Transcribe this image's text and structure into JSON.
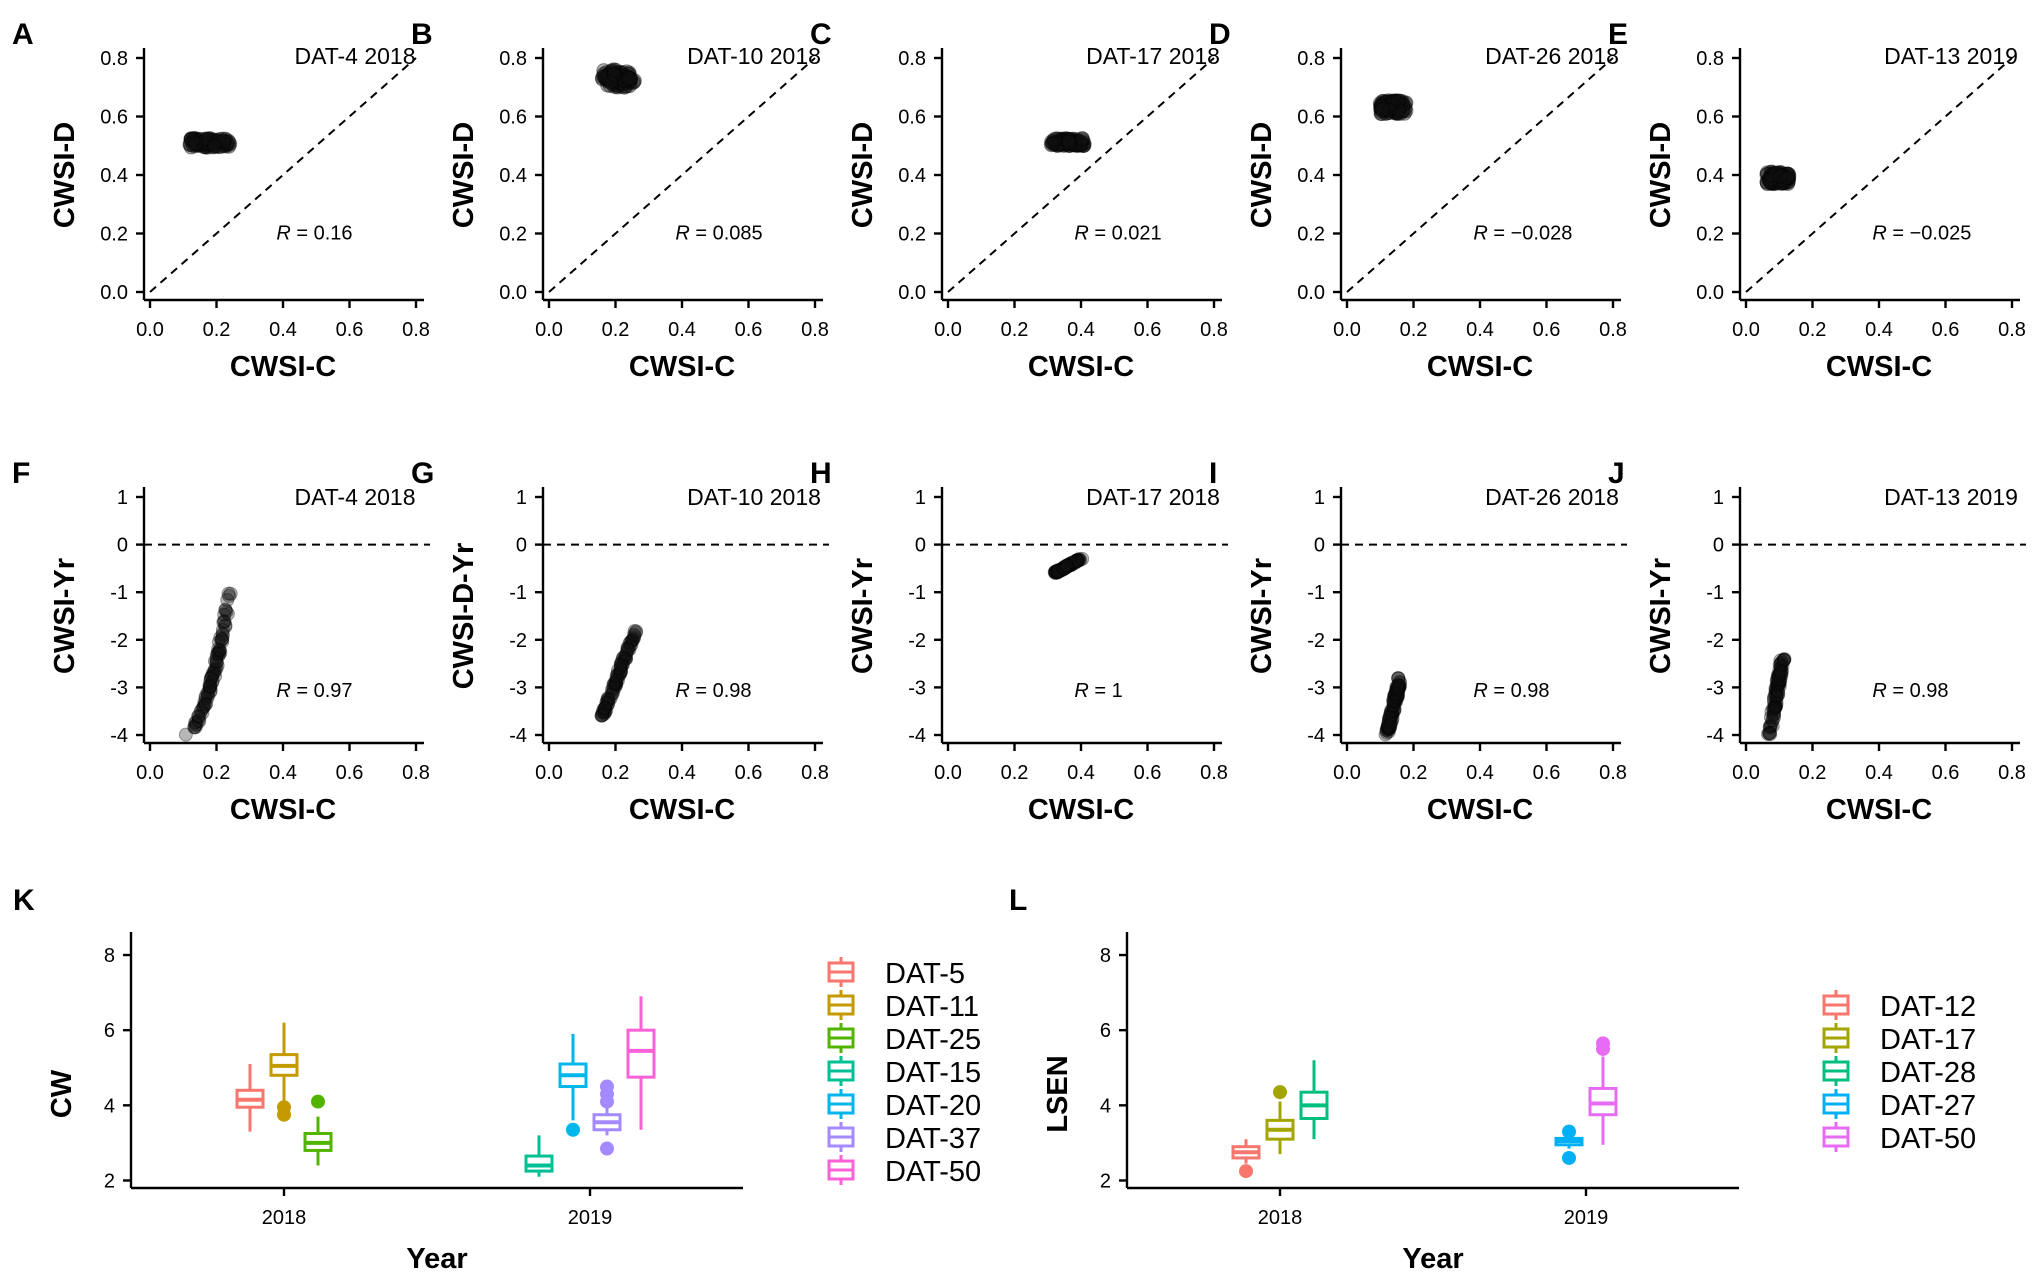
{
  "chart_data": [
    {
      "id": "A",
      "type": "scatter",
      "panel_label": "A",
      "title": "DAT-4 2018",
      "xlabel": "CWSI-C",
      "ylabel": "CWSI-D",
      "xlim": [
        0,
        0.8
      ],
      "ylim": [
        0,
        0.8
      ],
      "xticks": [
        "0.0",
        "0.2",
        "0.4",
        "0.6",
        "0.8"
      ],
      "yticks": [
        "0.0",
        "0.2",
        "0.4",
        "0.6",
        "0.8"
      ],
      "reference": "1:1 dashed line",
      "r_label": "R",
      "r_value": "= 0.16",
      "cluster": {
        "x": [
          0.12,
          0.24
        ],
        "y": [
          0.495,
          0.525
        ]
      }
    },
    {
      "id": "B",
      "type": "scatter",
      "panel_label": "B",
      "title": "DAT-10 2018",
      "xlabel": "CWSI-C",
      "ylabel": "CWSI-D",
      "xlim": [
        0,
        0.8
      ],
      "ylim": [
        0,
        0.8
      ],
      "xticks": [
        "0.0",
        "0.2",
        "0.4",
        "0.6",
        "0.8"
      ],
      "yticks": [
        "0.0",
        "0.2",
        "0.4",
        "0.6",
        "0.8"
      ],
      "reference": "1:1 dashed line",
      "r_label": "R",
      "r_value": "= 0.085",
      "cluster": {
        "x": [
          0.16,
          0.26
        ],
        "y": [
          0.7,
          0.76
        ]
      }
    },
    {
      "id": "C",
      "type": "scatter",
      "panel_label": "C",
      "title": "DAT-17 2018",
      "xlabel": "CWSI-C",
      "ylabel": "CWSI-D",
      "xlim": [
        0,
        0.8
      ],
      "ylim": [
        0,
        0.8
      ],
      "xticks": [
        "0.0",
        "0.2",
        "0.4",
        "0.6",
        "0.8"
      ],
      "yticks": [
        "0.0",
        "0.2",
        "0.4",
        "0.6",
        "0.8"
      ],
      "reference": "1:1 dashed line",
      "r_label": "R",
      "r_value": "= 0.021",
      "cluster": {
        "x": [
          0.31,
          0.41
        ],
        "y": [
          0.5,
          0.525
        ]
      }
    },
    {
      "id": "D",
      "type": "scatter",
      "panel_label": "D",
      "title": "DAT-26 2018",
      "xlabel": "CWSI-C",
      "ylabel": "CWSI-D",
      "xlim": [
        0,
        0.8
      ],
      "ylim": [
        0,
        0.8
      ],
      "xticks": [
        "0.0",
        "0.2",
        "0.4",
        "0.6",
        "0.8"
      ],
      "yticks": [
        "0.0",
        "0.2",
        "0.4",
        "0.6",
        "0.8"
      ],
      "reference": "1:1 dashed line",
      "r_label": "R",
      "r_value": "= −0.028",
      "cluster": {
        "x": [
          0.1,
          0.18
        ],
        "y": [
          0.61,
          0.655
        ]
      }
    },
    {
      "id": "E",
      "type": "scatter",
      "panel_label": "E",
      "title": "DAT-13 2019",
      "xlabel": "CWSI-C",
      "ylabel": "CWSI-D",
      "xlim": [
        0,
        0.8
      ],
      "ylim": [
        0,
        0.8
      ],
      "xticks": [
        "0.0",
        "0.2",
        "0.4",
        "0.6",
        "0.8"
      ],
      "yticks": [
        "0.0",
        "0.2",
        "0.4",
        "0.6",
        "0.8"
      ],
      "reference": "1:1 dashed line",
      "r_label": "R",
      "r_value": "= −0.025",
      "cluster": {
        "x": [
          0.06,
          0.13
        ],
        "y": [
          0.37,
          0.41
        ]
      }
    },
    {
      "id": "F",
      "type": "scatter",
      "panel_label": "F",
      "title": "DAT-4 2018",
      "xlabel": "CWSI-C",
      "ylabel": "CWSI-Yr",
      "xlim": [
        0,
        0.8
      ],
      "ylim": [
        -4,
        1
      ],
      "xticks": [
        "0.0",
        "0.2",
        "0.4",
        "0.6",
        "0.8"
      ],
      "yticks": [
        "-4",
        "-3",
        "-2",
        "-1",
        "0",
        "1"
      ],
      "reference": "y = 0 dashed line",
      "r_label": "R",
      "r_value": "= 0.97",
      "trend": {
        "x": [
          0.1,
          0.24
        ],
        "y": [
          -4.0,
          -1.0
        ]
      }
    },
    {
      "id": "G",
      "type": "scatter",
      "panel_label": "G",
      "title": "DAT-10 2018",
      "xlabel": "CWSI-C",
      "ylabel": "CWSI-D-Yr",
      "xlim": [
        0,
        0.8
      ],
      "ylim": [
        -4,
        1
      ],
      "xticks": [
        "0.0",
        "0.2",
        "0.4",
        "0.6",
        "0.8"
      ],
      "yticks": [
        "-4",
        "-3",
        "-2",
        "-1",
        "0",
        "1"
      ],
      "reference": "y = 0 dashed line",
      "r_label": "R",
      "r_value": "= 0.98",
      "trend": {
        "x": [
          0.16,
          0.26
        ],
        "y": [
          -3.6,
          -1.8
        ]
      }
    },
    {
      "id": "H",
      "type": "scatter",
      "panel_label": "H",
      "title": "DAT-17 2018",
      "xlabel": "CWSI-C",
      "ylabel": "CWSI-Yr",
      "xlim": [
        0,
        0.8
      ],
      "ylim": [
        -4,
        1
      ],
      "xticks": [
        "0.0",
        "0.2",
        "0.4",
        "0.6",
        "0.8"
      ],
      "yticks": [
        "-4",
        "-3",
        "-2",
        "-1",
        "0",
        "1"
      ],
      "reference": "y = 0 dashed line",
      "r_label": "R",
      "r_value": "= 1",
      "trend": {
        "x": [
          0.32,
          0.4
        ],
        "y": [
          -0.6,
          -0.3
        ]
      }
    },
    {
      "id": "I",
      "type": "scatter",
      "panel_label": "I",
      "title": "DAT-26 2018",
      "xlabel": "CWSI-C",
      "ylabel": "CWSI-Yr",
      "xlim": [
        0,
        0.8
      ],
      "ylim": [
        -4,
        1
      ],
      "xticks": [
        "0.0",
        "0.2",
        "0.4",
        "0.6",
        "0.8"
      ],
      "yticks": [
        "-4",
        "-3",
        "-2",
        "-1",
        "0",
        "1"
      ],
      "reference": "y = 0 dashed line",
      "r_label": "R",
      "r_value": "= 0.98",
      "trend": {
        "x": [
          0.12,
          0.16
        ],
        "y": [
          -4.0,
          -2.8
        ]
      }
    },
    {
      "id": "J",
      "type": "scatter",
      "panel_label": "J",
      "title": "DAT-13 2019",
      "xlabel": "CWSI-C",
      "ylabel": "CWSI-Yr",
      "xlim": [
        0,
        0.8
      ],
      "ylim": [
        -4,
        1
      ],
      "xticks": [
        "0.0",
        "0.2",
        "0.4",
        "0.6",
        "0.8"
      ],
      "yticks": [
        "-4",
        "-3",
        "-2",
        "-1",
        "0",
        "1"
      ],
      "reference": "y = 0 dashed line",
      "r_label": "R",
      "r_value": "= 0.98",
      "trend": {
        "x": [
          0.07,
          0.11
        ],
        "y": [
          -4.0,
          -2.4
        ]
      }
    },
    {
      "id": "K",
      "type": "box",
      "panel_label": "K",
      "xlabel": "Year",
      "ylabel": "CW",
      "ylim": [
        1.8,
        8.4
      ],
      "yticks": [
        "2",
        "4",
        "6",
        "8"
      ],
      "categories": [
        "2018",
        "2019"
      ],
      "series": [
        {
          "name": "DAT-5",
          "color": "#F8766D",
          "cat": 0,
          "slot": 0,
          "slots": 3,
          "min": 3.3,
          "q1": 3.95,
          "med": 4.15,
          "q3": 4.4,
          "max": 5.1,
          "outliers": []
        },
        {
          "name": "DAT-11",
          "color": "#C49A00",
          "cat": 0,
          "slot": 1,
          "slots": 3,
          "min": 4.1,
          "q1": 4.8,
          "med": 5.05,
          "q3": 5.35,
          "max": 6.2,
          "outliers": [
            3.75,
            3.95
          ]
        },
        {
          "name": "DAT-25",
          "color": "#53B400",
          "cat": 0,
          "slot": 2,
          "slots": 3,
          "min": 2.4,
          "q1": 2.8,
          "med": 3.0,
          "q3": 3.25,
          "max": 3.7,
          "outliers": [
            4.1
          ]
        },
        {
          "name": "DAT-15",
          "color": "#00C094",
          "cat": 1,
          "slot": 0,
          "slots": 4,
          "min": 2.1,
          "q1": 2.25,
          "med": 2.4,
          "q3": 2.65,
          "max": 3.2,
          "outliers": []
        },
        {
          "name": "DAT-20",
          "color": "#00B6EB",
          "cat": 1,
          "slot": 1,
          "slots": 4,
          "min": 3.6,
          "q1": 4.5,
          "med": 4.8,
          "q3": 5.1,
          "max": 5.9,
          "outliers": [
            3.35
          ]
        },
        {
          "name": "DAT-37",
          "color": "#A58AFF",
          "cat": 1,
          "slot": 2,
          "slots": 4,
          "min": 3.2,
          "q1": 3.35,
          "med": 3.55,
          "q3": 3.75,
          "max": 3.95,
          "outliers": [
            2.85,
            4.1,
            4.3,
            4.5
          ]
        },
        {
          "name": "DAT-50",
          "color": "#FB61D7",
          "cat": 1,
          "slot": 3,
          "slots": 4,
          "min": 3.35,
          "q1": 4.75,
          "med": 5.45,
          "q3": 6.0,
          "max": 6.9,
          "outliers": []
        }
      ]
    },
    {
      "id": "L",
      "type": "box",
      "panel_label": "L",
      "xlabel": "Year",
      "ylabel": "LSEN",
      "ylim": [
        1.8,
        8.4
      ],
      "yticks": [
        "2",
        "4",
        "6",
        "8"
      ],
      "categories": [
        "2018",
        "2019"
      ],
      "series": [
        {
          "name": "DAT-12",
          "color": "#F8766D",
          "cat": 0,
          "slot": 0,
          "slots": 3,
          "min": 2.45,
          "q1": 2.6,
          "med": 2.75,
          "q3": 2.9,
          "max": 3.1,
          "outliers": [
            2.25
          ]
        },
        {
          "name": "DAT-17",
          "color": "#A3A500",
          "cat": 0,
          "slot": 1,
          "slots": 3,
          "min": 2.7,
          "q1": 3.1,
          "med": 3.35,
          "q3": 3.6,
          "max": 4.1,
          "outliers": [
            4.35
          ]
        },
        {
          "name": "DAT-28",
          "color": "#00BF7D",
          "cat": 0,
          "slot": 2,
          "slots": 3,
          "min": 3.1,
          "q1": 3.65,
          "med": 4.0,
          "q3": 4.35,
          "max": 5.2,
          "outliers": []
        },
        {
          "name": "DAT-27",
          "color": "#00B0F6",
          "cat": 1,
          "slot": 0,
          "slots": 2,
          "min": 2.85,
          "q1": 2.95,
          "med": 3.05,
          "q3": 3.12,
          "max": 3.2,
          "outliers": [
            2.6,
            3.3
          ]
        },
        {
          "name": "DAT-50",
          "color": "#E76BF3",
          "cat": 1,
          "slot": 1,
          "slots": 2,
          "min": 2.95,
          "q1": 3.75,
          "med": 4.05,
          "q3": 4.45,
          "max": 5.3,
          "outliers": [
            5.5,
            5.65
          ]
        }
      ]
    }
  ]
}
